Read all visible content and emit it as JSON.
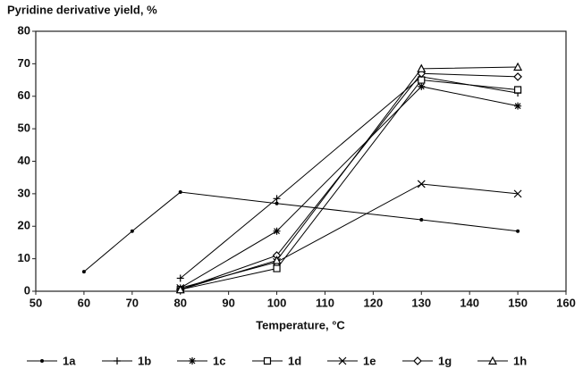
{
  "chart_data": {
    "type": "line",
    "title": "Pyridine derivative yield,  %",
    "x_label": "Temperature, °C",
    "x": [
      60,
      70,
      80,
      100,
      130,
      150
    ],
    "series": [
      {
        "name": "1a",
        "color": "#000000",
        "marker": "dot",
        "values": [
          6,
          18.5,
          30.5,
          27,
          22,
          18.5
        ]
      },
      {
        "name": "1b",
        "color": "#000000",
        "marker": "plus",
        "values": [
          null,
          null,
          4,
          28.5,
          66,
          61
        ]
      },
      {
        "name": "1c",
        "color": "#000000",
        "marker": "asterisk",
        "values": [
          null,
          null,
          1,
          18.5,
          63,
          57
        ]
      },
      {
        "name": "1d",
        "color": "#000000",
        "marker": "square",
        "values": [
          null,
          null,
          0.5,
          7,
          65,
          62
        ]
      },
      {
        "name": "1e",
        "color": "#000000",
        "marker": "x",
        "values": [
          null,
          null,
          1,
          9,
          33,
          30
        ]
      },
      {
        "name": "1g",
        "color": "#000000",
        "marker": "diamond",
        "values": [
          null,
          null,
          0.5,
          11,
          67,
          66
        ]
      },
      {
        "name": "1h",
        "color": "#000000",
        "marker": "triangle",
        "values": [
          null,
          null,
          0.5,
          9.5,
          68.5,
          69
        ]
      }
    ],
    "xlim": [
      50,
      160
    ],
    "xticks": [
      50,
      60,
      70,
      80,
      90,
      100,
      110,
      120,
      130,
      140,
      150,
      160
    ],
    "ylim": [
      0,
      80
    ],
    "yticks": [
      0,
      10,
      20,
      30,
      40,
      50,
      60,
      70,
      80
    ],
    "grid": false,
    "legend": "bottom"
  }
}
